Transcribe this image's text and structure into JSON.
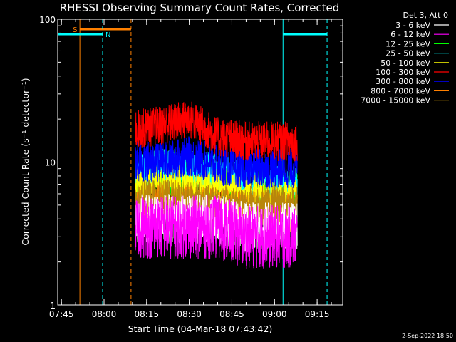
{
  "chart_data": {
    "type": "line",
    "title": "RHESSI Observing Summary Count Rates, Corrected",
    "xlabel": "Start Time (04-Mar-18 07:43:42)",
    "ylabel": "Corrected Count Rate (s⁻¹ detector⁻¹)",
    "y_scale": "log",
    "ylim": [
      1,
      100
    ],
    "xlim": [
      "07:43:42",
      "09:24:00"
    ],
    "x_ticks": [
      "07:45",
      "08:00",
      "08:15",
      "08:30",
      "08:45",
      "09:00",
      "09:15"
    ],
    "y_ticks": [
      "1",
      "10",
      "100"
    ],
    "legend_title": "Det 3, Att 0",
    "legend_position": "outside-right",
    "data_window": [
      "08:11:00",
      "09:08:00"
    ],
    "series": [
      {
        "name": "3 - 6 keV",
        "color": "#ffffff",
        "x": [
          "08:11",
          "08:20",
          "08:30",
          "08:40",
          "08:50",
          "09:00",
          "09:08"
        ],
        "values": [
          4,
          4,
          4,
          4,
          3.5,
          3.5,
          3.5
        ]
      },
      {
        "name": "6 - 12 keV",
        "color": "#ff00ff",
        "x": [
          "08:11",
          "08:20",
          "08:30",
          "08:40",
          "08:50",
          "09:00",
          "09:08"
        ],
        "values": [
          3.5,
          3.5,
          3.5,
          3.5,
          3,
          3,
          3
        ]
      },
      {
        "name": "12 - 25 keV",
        "color": "#00ff00",
        "x": [
          "08:11",
          "08:20",
          "08:30",
          "08:40",
          "08:50",
          "09:00",
          "09:08"
        ],
        "values": [
          7,
          8,
          8,
          7.5,
          6.5,
          6,
          6
        ]
      },
      {
        "name": "25 - 50 keV",
        "color": "#00ffff",
        "x": [
          "08:11",
          "08:20",
          "08:30",
          "08:40",
          "08:50",
          "09:00",
          "09:08"
        ],
        "values": [
          8,
          9,
          9,
          8.5,
          7.5,
          7,
          7
        ]
      },
      {
        "name": "50 - 100 keV",
        "color": "#ffff00",
        "x": [
          "08:11",
          "08:20",
          "08:30",
          "08:40",
          "08:50",
          "09:00",
          "09:08"
        ],
        "values": [
          6.5,
          7,
          7,
          6.5,
          6,
          5.5,
          5.5
        ]
      },
      {
        "name": "100 - 300 keV",
        "color": "#ff0000",
        "x": [
          "08:11",
          "08:20",
          "08:30",
          "08:40",
          "08:50",
          "09:00",
          "09:08"
        ],
        "values": [
          17,
          18,
          20,
          15,
          14,
          14,
          14
        ]
      },
      {
        "name": "300 - 800 keV",
        "color": "#0000ff",
        "x": [
          "08:11",
          "08:20",
          "08:30",
          "08:40",
          "08:50",
          "09:00",
          "09:08"
        ],
        "values": [
          10,
          10,
          11,
          9.5,
          9,
          9,
          9
        ]
      },
      {
        "name": "800 - 7000 keV",
        "color": "#ff8000",
        "x": [
          "08:11",
          "08:20",
          "08:30",
          "08:40",
          "08:50",
          "09:00",
          "09:08"
        ],
        "values": [
          5,
          5,
          5,
          4.8,
          4.5,
          4.5,
          4.5
        ]
      },
      {
        "name": "7000 - 15000 keV",
        "color": "#b8860b",
        "x": [
          "08:11",
          "08:20",
          "08:30",
          "08:40",
          "08:50",
          "09:00",
          "09:08"
        ],
        "values": [
          5.5,
          5.5,
          5.5,
          5,
          5,
          5,
          5
        ]
      }
    ],
    "annotations": [
      {
        "label": "S",
        "color": "#ff8000",
        "kind": "saa",
        "start": "07:51:30",
        "end": "08:09:30"
      },
      {
        "label": "N",
        "color": "#00ffff",
        "kind": "night",
        "start": "07:43:42",
        "end": "07:59:30"
      },
      {
        "kind": "night",
        "label": "",
        "color": "#00ffff",
        "start": "09:03:00",
        "end": "09:18:30"
      }
    ],
    "grid": false
  },
  "timestamp": "2-Sep-2022 18:50"
}
